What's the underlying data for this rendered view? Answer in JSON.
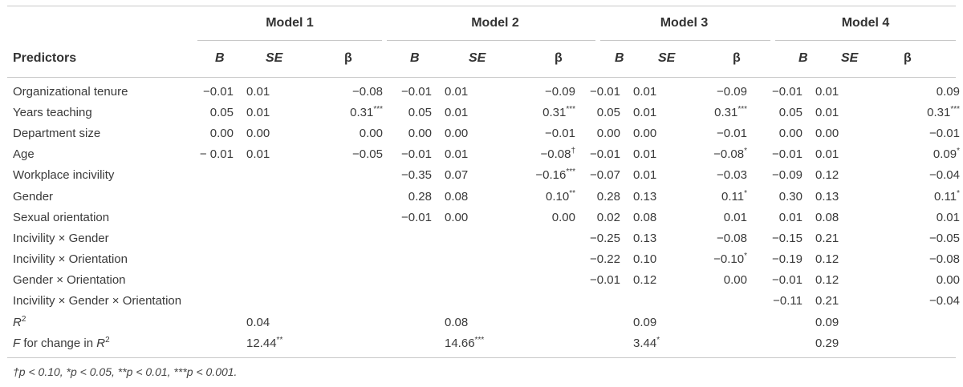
{
  "table": {
    "model_headers": [
      "Model 1",
      "Model 2",
      "Model 3",
      "Model 4"
    ],
    "predictor_header": "Predictors",
    "col_b": "B",
    "col_se": "SE",
    "col_beta": "β",
    "rows": [
      {
        "label": "Organizational tenure",
        "cells": [
          "−0.01",
          "0.01",
          "−0.08",
          "−0.01",
          "0.01",
          "−0.09",
          "−0.01",
          "0.01",
          "−0.09",
          "−0.01",
          "0.01",
          "0.09"
        ]
      },
      {
        "label": "Years teaching",
        "cells": [
          "0.05",
          "0.01",
          "0.31***",
          "0.05",
          "0.01",
          "0.31***",
          "0.05",
          "0.01",
          "0.31***",
          "0.05",
          "0.01",
          "0.31***"
        ]
      },
      {
        "label": "Department size",
        "cells": [
          "0.00",
          "0.00",
          "0.00",
          "0.00",
          "0.00",
          "−0.01",
          "0.00",
          "0.00",
          "−0.01",
          "0.00",
          "0.00",
          "−0.01"
        ]
      },
      {
        "label": "Age",
        "cells": [
          "− 0.01",
          "0.01",
          "−0.05",
          "−0.01",
          "0.01",
          "−0.08†",
          "−0.01",
          "0.01",
          "−0.08*",
          "−0.01",
          "0.01",
          "0.09*"
        ]
      },
      {
        "label": "Workplace incivility",
        "cells": [
          "",
          "",
          "",
          "−0.35",
          "0.07",
          "−0.16***",
          "−0.07",
          "0.01",
          "−0.03",
          "−0.09",
          "0.12",
          "−0.04"
        ]
      },
      {
        "label": "Gender",
        "cells": [
          "",
          "",
          "",
          "0.28",
          "0.08",
          "0.10**",
          "0.28",
          "0.13",
          "0.11*",
          "0.30",
          "0.13",
          "0.11*"
        ]
      },
      {
        "label": "Sexual orientation",
        "cells": [
          "",
          "",
          "",
          "−0.01",
          "0.00",
          "0.00",
          "0.02",
          "0.08",
          "0.01",
          "0.01",
          "0.08",
          "0.01"
        ]
      },
      {
        "label": "Incivility × Gender",
        "cells": [
          "",
          "",
          "",
          "",
          "",
          "",
          "−0.25",
          "0.13",
          "−0.08",
          "−0.15",
          "0.21",
          "−0.05"
        ]
      },
      {
        "label": "Incivility × Orientation",
        "cells": [
          "",
          "",
          "",
          "",
          "",
          "",
          "−0.22",
          "0.10",
          "−0.10*",
          "−0.19",
          "0.12",
          "−0.08"
        ]
      },
      {
        "label": "Gender × Orientation",
        "cells": [
          "",
          "",
          "",
          "",
          "",
          "",
          "−0.01",
          "0.12",
          "0.00",
          "−0.01",
          "0.12",
          "0.00"
        ]
      },
      {
        "label": "Incivility × Gender × Orientation",
        "cells": [
          "",
          "",
          "",
          "",
          "",
          "",
          "",
          "",
          "",
          "−0.11",
          "0.21",
          "−0.04"
        ]
      }
    ],
    "r2_row": {
      "label": "R",
      "label_sup": "2",
      "values": [
        "0.04",
        "0.08",
        "0.09",
        "0.09"
      ]
    },
    "f_row": {
      "label": "F for change in R",
      "label_sup": "2",
      "values": [
        "12.44**",
        "14.66***",
        "3.44*",
        "0.29"
      ]
    },
    "note": "†p < 0.10, *p < 0.05, **p < 0.01, ***p < 0.001."
  }
}
